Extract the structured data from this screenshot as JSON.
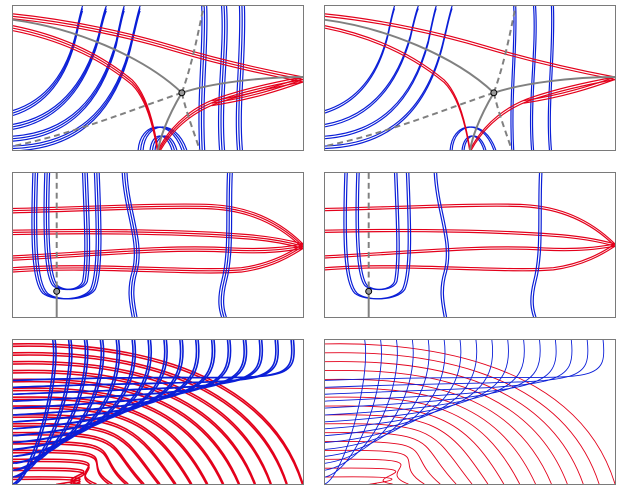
{
  "colors": {
    "red": "#e3001b",
    "blue": "#0a1ed7",
    "gray": "#808080",
    "frame": "#7a7a7a",
    "node_fill": "#9a9a9a"
  },
  "panels": [
    {
      "id": "p11",
      "kind": "saddle",
      "style": "multi"
    },
    {
      "id": "p12",
      "kind": "saddle",
      "style": "single"
    },
    {
      "id": "p21",
      "kind": "center",
      "style": "multi"
    },
    {
      "id": "p22",
      "kind": "center",
      "style": "single"
    },
    {
      "id": "p31",
      "kind": "grid",
      "style": "thick"
    },
    {
      "id": "p32",
      "kind": "grid",
      "style": "thin"
    }
  ]
}
